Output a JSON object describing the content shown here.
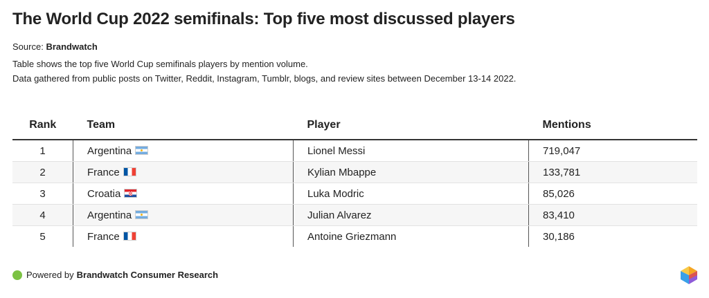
{
  "header": {
    "title": "The World Cup 2022 semifinals: Top five most discussed players",
    "source_prefix": "Source:",
    "source_name": "Brandwatch",
    "description_line1": "Table shows the top five World Cup semifinals players by mention volume.",
    "description_line2": "Data gathered from public posts on Twitter, Reddit, Instagram, Tumblr, blogs, and review sites between December 13-14 2022."
  },
  "table": {
    "columns": [
      "Rank",
      "Team",
      "Player",
      "Mentions"
    ],
    "rows": [
      {
        "rank": "1",
        "team": "Argentina",
        "flag": "flag-argentina",
        "player": "Lionel Messi",
        "mentions": "719,047"
      },
      {
        "rank": "2",
        "team": "France",
        "flag": "flag-france",
        "player": "Kylian Mbappe",
        "mentions": "133,781"
      },
      {
        "rank": "3",
        "team": "Croatia",
        "flag": "flag-croatia",
        "player": "Luka Modric",
        "mentions": "85,026"
      },
      {
        "rank": "4",
        "team": "Argentina",
        "flag": "flag-argentina",
        "player": "Julian Alvarez",
        "mentions": "83,410"
      },
      {
        "rank": "5",
        "team": "France",
        "flag": "flag-france",
        "player": "Antoine Griezmann",
        "mentions": "30,186"
      }
    ]
  },
  "footer": {
    "powered_prefix": "Powered by",
    "powered_name": "Brandwatch Consumer Research",
    "dot_color": "#7cc243",
    "logo_icon": "brandwatch-logo-icon"
  }
}
